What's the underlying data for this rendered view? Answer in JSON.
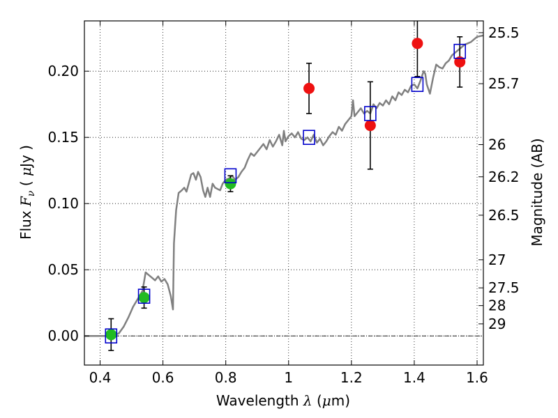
{
  "chart_data": {
    "type": "scatter",
    "xlabel": "Wavelength  λ (μm)",
    "ylabel": "Flux  Fν  ( μJy )",
    "y2label": "Magnitude (AB)",
    "xlim": [
      0.35,
      1.62
    ],
    "ylim": [
      -0.022,
      0.238
    ],
    "grid": true,
    "x_ticks": [
      {
        "value": 0.4,
        "label": "0.4"
      },
      {
        "value": 0.6,
        "label": "0.6"
      },
      {
        "value": 0.8,
        "label": "0.8"
      },
      {
        "value": 1.0,
        "label": "1"
      },
      {
        "value": 1.2,
        "label": "1.2"
      },
      {
        "value": 1.4,
        "label": "1.4"
      },
      {
        "value": 1.6,
        "label": "1.6"
      }
    ],
    "y_ticks": [
      {
        "value": 0.0,
        "label": "0.00"
      },
      {
        "value": 0.05,
        "label": "0.05"
      },
      {
        "value": 0.1,
        "label": "0.10"
      },
      {
        "value": 0.15,
        "label": "0.15"
      },
      {
        "value": 0.2,
        "label": "0.20"
      }
    ],
    "mag_ticks": [
      {
        "mag": 25.5,
        "label": "25.5"
      },
      {
        "mag": 25.7,
        "label": "25.7"
      },
      {
        "mag": 26.0,
        "label": "26"
      },
      {
        "mag": 26.2,
        "label": "26.2"
      },
      {
        "mag": 26.5,
        "label": "26.5"
      },
      {
        "mag": 27.0,
        "label": "27"
      },
      {
        "mag": 27.5,
        "label": "27.5"
      },
      {
        "mag": 28.0,
        "label": "28"
      },
      {
        "mag": 29.0,
        "label": "29"
      }
    ],
    "colors": {
      "model": "#808080",
      "green": "#22bb22",
      "red": "#ee1111",
      "box": "#0000cc",
      "errorbar": "#000000"
    },
    "model_spectrum": [
      [
        0.35,
        0.0
      ],
      [
        0.44,
        0.0
      ],
      [
        0.46,
        0.002
      ],
      [
        0.475,
        0.007
      ],
      [
        0.49,
        0.014
      ],
      [
        0.505,
        0.022
      ],
      [
        0.52,
        0.028
      ],
      [
        0.535,
        0.034
      ],
      [
        0.545,
        0.048
      ],
      [
        0.555,
        0.046
      ],
      [
        0.565,
        0.044
      ],
      [
        0.575,
        0.042
      ],
      [
        0.585,
        0.045
      ],
      [
        0.595,
        0.041
      ],
      [
        0.605,
        0.043
      ],
      [
        0.615,
        0.039
      ],
      [
        0.625,
        0.03
      ],
      [
        0.632,
        0.02
      ],
      [
        0.635,
        0.07
      ],
      [
        0.642,
        0.095
      ],
      [
        0.65,
        0.108
      ],
      [
        0.66,
        0.11
      ],
      [
        0.668,
        0.112
      ],
      [
        0.675,
        0.109
      ],
      [
        0.682,
        0.115
      ],
      [
        0.69,
        0.122
      ],
      [
        0.697,
        0.123
      ],
      [
        0.705,
        0.118
      ],
      [
        0.712,
        0.124
      ],
      [
        0.72,
        0.12
      ],
      [
        0.728,
        0.11
      ],
      [
        0.735,
        0.105
      ],
      [
        0.742,
        0.112
      ],
      [
        0.75,
        0.105
      ],
      [
        0.758,
        0.115
      ],
      [
        0.766,
        0.112
      ],
      [
        0.774,
        0.111
      ],
      [
        0.782,
        0.11
      ],
      [
        0.79,
        0.115
      ],
      [
        0.8,
        0.118
      ],
      [
        0.81,
        0.119
      ],
      [
        0.82,
        0.121
      ],
      [
        0.83,
        0.118
      ],
      [
        0.84,
        0.12
      ],
      [
        0.85,
        0.124
      ],
      [
        0.86,
        0.127
      ],
      [
        0.87,
        0.133
      ],
      [
        0.88,
        0.138
      ],
      [
        0.89,
        0.136
      ],
      [
        0.9,
        0.139
      ],
      [
        0.91,
        0.142
      ],
      [
        0.92,
        0.145
      ],
      [
        0.93,
        0.141
      ],
      [
        0.94,
        0.148
      ],
      [
        0.95,
        0.143
      ],
      [
        0.96,
        0.147
      ],
      [
        0.97,
        0.152
      ],
      [
        0.98,
        0.144
      ],
      [
        0.985,
        0.155
      ],
      [
        0.99,
        0.147
      ],
      [
        1.0,
        0.151
      ],
      [
        1.01,
        0.153
      ],
      [
        1.02,
        0.15
      ],
      [
        1.03,
        0.154
      ],
      [
        1.04,
        0.149
      ],
      [
        1.05,
        0.148
      ],
      [
        1.06,
        0.15
      ],
      [
        1.07,
        0.147
      ],
      [
        1.08,
        0.152
      ],
      [
        1.09,
        0.146
      ],
      [
        1.1,
        0.149
      ],
      [
        1.11,
        0.144
      ],
      [
        1.12,
        0.147
      ],
      [
        1.13,
        0.151
      ],
      [
        1.14,
        0.154
      ],
      [
        1.15,
        0.152
      ],
      [
        1.16,
        0.158
      ],
      [
        1.17,
        0.155
      ],
      [
        1.18,
        0.16
      ],
      [
        1.19,
        0.163
      ],
      [
        1.2,
        0.166
      ],
      [
        1.205,
        0.178
      ],
      [
        1.21,
        0.166
      ],
      [
        1.22,
        0.169
      ],
      [
        1.23,
        0.172
      ],
      [
        1.24,
        0.168
      ],
      [
        1.25,
        0.17
      ],
      [
        1.26,
        0.168
      ],
      [
        1.27,
        0.175
      ],
      [
        1.28,
        0.172
      ],
      [
        1.29,
        0.176
      ],
      [
        1.3,
        0.174
      ],
      [
        1.31,
        0.178
      ],
      [
        1.32,
        0.175
      ],
      [
        1.33,
        0.181
      ],
      [
        1.34,
        0.178
      ],
      [
        1.35,
        0.184
      ],
      [
        1.36,
        0.182
      ],
      [
        1.37,
        0.186
      ],
      [
        1.38,
        0.184
      ],
      [
        1.39,
        0.189
      ],
      [
        1.4,
        0.19
      ],
      [
        1.41,
        0.187
      ],
      [
        1.42,
        0.193
      ],
      [
        1.43,
        0.2
      ],
      [
        1.435,
        0.198
      ],
      [
        1.44,
        0.19
      ],
      [
        1.45,
        0.183
      ],
      [
        1.46,
        0.195
      ],
      [
        1.47,
        0.205
      ],
      [
        1.48,
        0.203
      ],
      [
        1.49,
        0.202
      ],
      [
        1.5,
        0.206
      ],
      [
        1.51,
        0.208
      ],
      [
        1.52,
        0.212
      ],
      [
        1.53,
        0.214
      ],
      [
        1.54,
        0.216
      ],
      [
        1.55,
        0.218
      ],
      [
        1.56,
        0.22
      ],
      [
        1.57,
        0.221
      ],
      [
        1.58,
        0.222
      ],
      [
        1.59,
        0.224
      ],
      [
        1.6,
        0.226
      ],
      [
        1.62,
        0.227
      ]
    ],
    "green_points": [
      {
        "x": 0.435,
        "y": 0.001,
        "yerr": 0.012
      },
      {
        "x": 0.54,
        "y": 0.029,
        "yerr": 0.008
      },
      {
        "x": 0.815,
        "y": 0.115,
        "yerr": 0.006
      }
    ],
    "red_points": [
      {
        "x": 1.065,
        "y": 0.187,
        "yerr": 0.019
      },
      {
        "x": 1.26,
        "y": 0.159,
        "yerr": 0.033
      },
      {
        "x": 1.41,
        "y": 0.221,
        "yerr": 0.025
      },
      {
        "x": 1.545,
        "y": 0.207,
        "yerr": 0.019
      }
    ],
    "model_boxes": [
      {
        "x": 0.435,
        "y": 0.0
      },
      {
        "x": 0.54,
        "y": 0.03
      },
      {
        "x": 0.815,
        "y": 0.121
      },
      {
        "x": 1.065,
        "y": 0.15
      },
      {
        "x": 1.26,
        "y": 0.168
      },
      {
        "x": 1.41,
        "y": 0.19
      },
      {
        "x": 1.545,
        "y": 0.215
      }
    ]
  }
}
